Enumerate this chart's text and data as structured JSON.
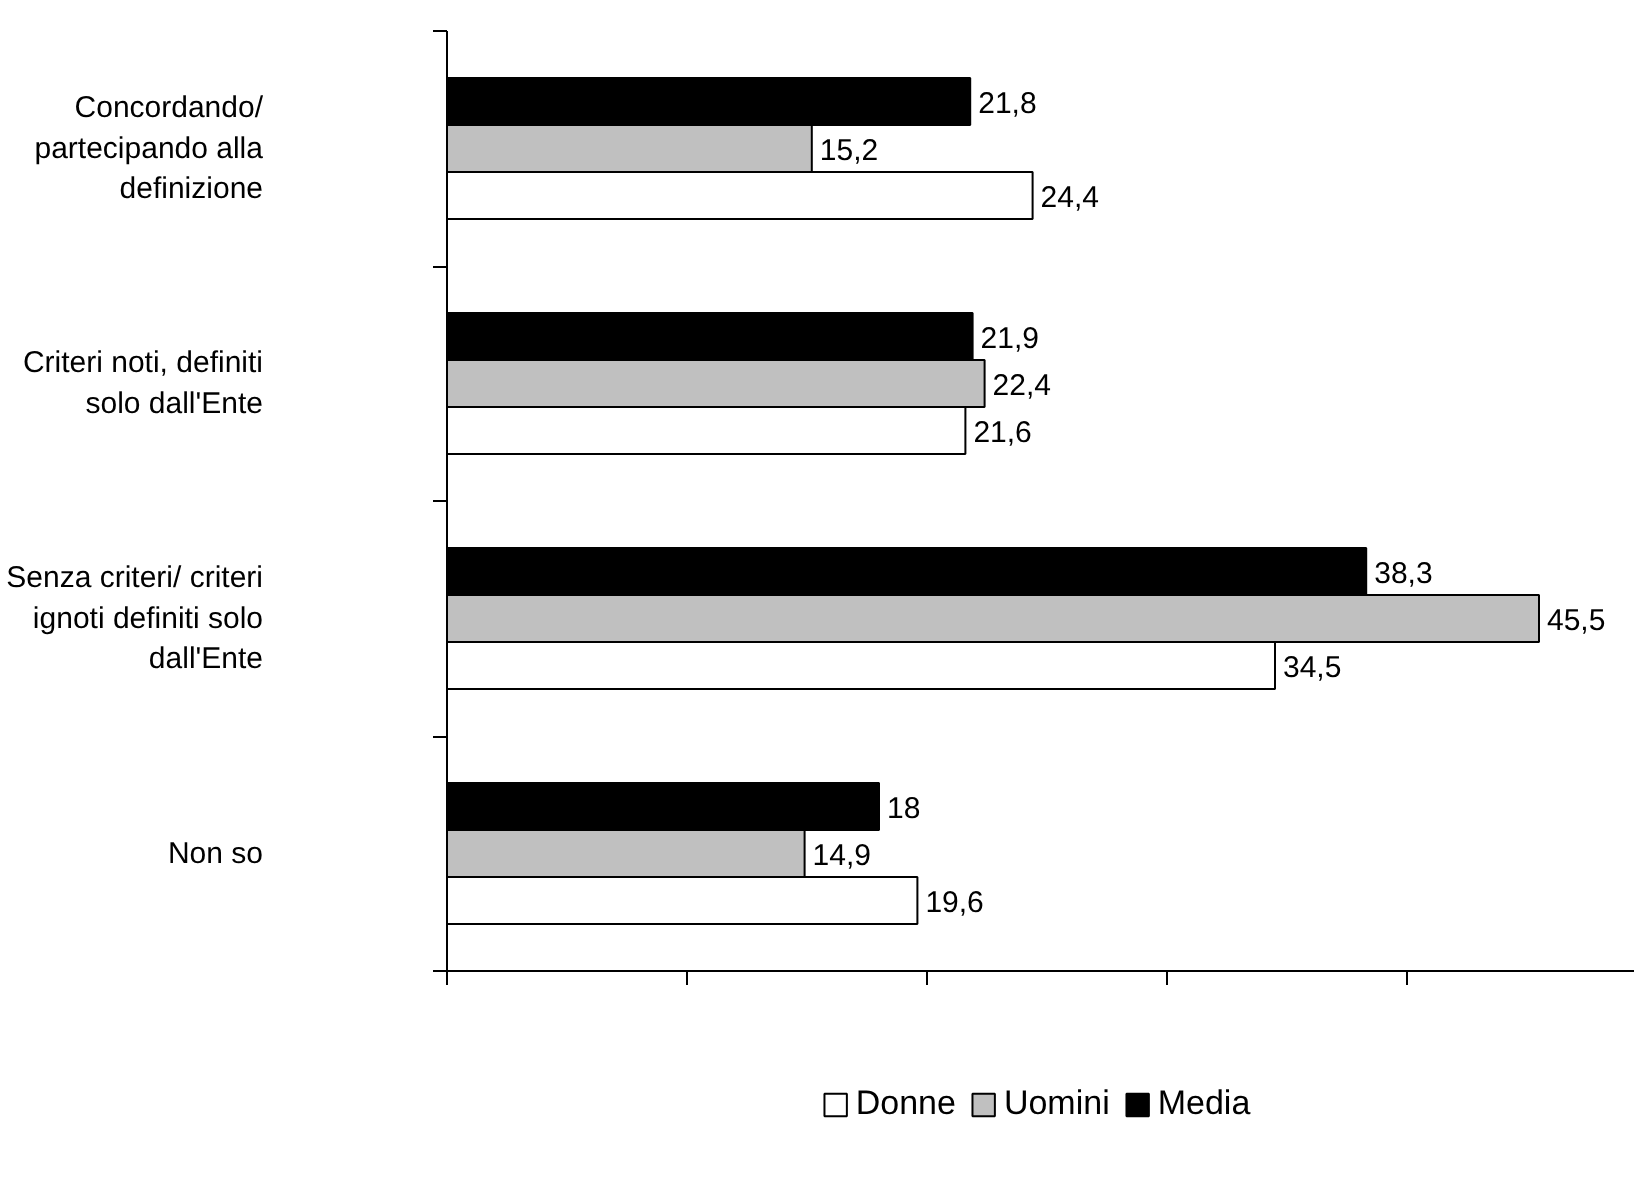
{
  "chart_data": {
    "type": "bar",
    "orientation": "horizontal",
    "categories": [
      "Concordando/\npartecipando alla\ndefinizione",
      "Criteri noti, definiti\nsolo dall'Ente",
      "Senza criteri/ criteri\nignoti definiti solo\ndall'Ente",
      "Non so"
    ],
    "series": [
      {
        "name": "Donne",
        "color": "#ffffff",
        "values": [
          24.4,
          21.6,
          34.5,
          19.6
        ],
        "value_labels": [
          "24,4",
          "21,6",
          "34,5",
          "19,6"
        ]
      },
      {
        "name": "Uomini",
        "color": "#c0c0c0",
        "values": [
          15.2,
          22.4,
          45.5,
          14.9
        ],
        "value_labels": [
          "15,2",
          "22,4",
          "45,5",
          "14,9"
        ]
      },
      {
        "name": "Media",
        "color": "#000000",
        "values": [
          21.8,
          21.9,
          38.3,
          18
        ],
        "value_labels": [
          "21,8",
          "21,9",
          "38,3",
          "18"
        ]
      }
    ],
    "xlim": [
      0,
      50
    ],
    "xticks": [
      {
        "value": 0,
        "label": null
      },
      {
        "value": 10,
        "label": null
      },
      {
        "value": 20,
        "label": null
      },
      {
        "value": 30,
        "label": null
      },
      {
        "value": 40,
        "label": null
      },
      {
        "value": 50,
        "label": null
      }
    ],
    "tick_labels": "y",
    "grid": false,
    "legend": "bottom"
  }
}
